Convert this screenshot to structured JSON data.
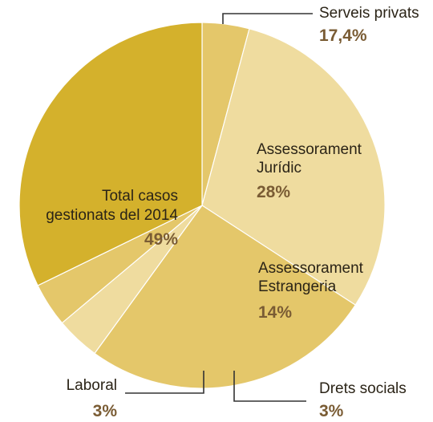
{
  "chart_data": {
    "type": "pie",
    "title": "",
    "slices": [
      {
        "lines": [
          "Serveis privats"
        ],
        "value": 17.4,
        "value_label": "17,4%",
        "color": "#e4c76a"
      },
      {
        "lines": [
          "Assessorament",
          "Jurídic"
        ],
        "value": 28,
        "value_label": "28%",
        "color": "#efdc9f"
      },
      {
        "lines": [
          "Assessorament",
          "Estrangeria"
        ],
        "value": 14,
        "value_label": "14%",
        "color": "#e4c76a"
      },
      {
        "lines": [
          "Drets socials"
        ],
        "value": 3,
        "value_label": "3%",
        "color": "#efdc9f"
      },
      {
        "lines": [
          "Laboral"
        ],
        "value": 3,
        "value_label": "3%",
        "color": "#e4c76a"
      },
      {
        "lines": [
          "Total casos",
          "gestionats del 2014"
        ],
        "value": 49,
        "value_label": "49%",
        "color": "#d4b12c"
      }
    ]
  }
}
